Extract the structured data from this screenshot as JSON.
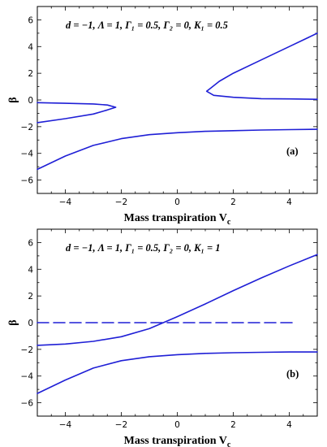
{
  "chart_data": [
    {
      "type": "line",
      "panel_label": "(a)",
      "annotation": "d = −1, Λ = 1, Γ₁ = 0.5, Γ₂ = 0, K₁ = 0.5",
      "xlabel": "Mass transpiration V",
      "xlabel_sub": "c",
      "ylabel": "β",
      "xlim": [
        -5,
        5
      ],
      "ylim": [
        -7,
        7
      ],
      "xticks": [
        -4,
        -2,
        0,
        2,
        4
      ],
      "yticks": [
        -6,
        -4,
        -2,
        0,
        2,
        4,
        6
      ],
      "color": "#1f1fd6",
      "series": [
        {
          "style": "solid",
          "points": [
            [
              -5,
              -0.2
            ],
            [
              -4,
              -0.25
            ],
            [
              -3,
              -0.3
            ],
            [
              -2.5,
              -0.38
            ],
            [
              -2.2,
              -0.55
            ],
            [
              -2.5,
              -0.75
            ],
            [
              -3,
              -1.05
            ],
            [
              -4,
              -1.4
            ],
            [
              -5,
              -1.7
            ]
          ]
        },
        {
          "style": "solid",
          "points": [
            [
              5,
              5.0
            ],
            [
              4,
              4.0
            ],
            [
              3,
              3.0
            ],
            [
              2,
              2.0
            ],
            [
              1.5,
              1.4
            ],
            [
              1.2,
              0.9
            ],
            [
              1.05,
              0.65
            ],
            [
              1.3,
              0.35
            ],
            [
              2,
              0.2
            ],
            [
              3,
              0.1
            ],
            [
              4,
              0.08
            ],
            [
              5,
              0.05
            ]
          ]
        },
        {
          "style": "solid",
          "points": [
            [
              -5,
              -5.2
            ],
            [
              -4,
              -4.2
            ],
            [
              -3,
              -3.4
            ],
            [
              -2,
              -2.9
            ],
            [
              -1,
              -2.6
            ],
            [
              0,
              -2.45
            ],
            [
              1,
              -2.35
            ],
            [
              2,
              -2.3
            ],
            [
              3,
              -2.25
            ],
            [
              4,
              -2.22
            ],
            [
              5,
              -2.2
            ]
          ]
        }
      ]
    },
    {
      "type": "line",
      "panel_label": "(b)",
      "annotation": "d = −1, Λ = 1, Γ₁ = 0.5, Γ₂ = 0, K₁ = 1",
      "xlabel": "Mass transpiration V",
      "xlabel_sub": "c",
      "ylabel": "β",
      "xlim": [
        -5,
        5
      ],
      "ylim": [
        -7,
        7
      ],
      "xticks": [
        -4,
        -2,
        0,
        2,
        4
      ],
      "yticks": [
        -6,
        -4,
        -2,
        0,
        2,
        4,
        6
      ],
      "color": "#1f1fd6",
      "series": [
        {
          "style": "dashed",
          "points": [
            [
              -5,
              0
            ],
            [
              4.2,
              0
            ]
          ]
        },
        {
          "style": "solid",
          "points": [
            [
              -5,
              -1.7
            ],
            [
              -4,
              -1.6
            ],
            [
              -3,
              -1.4
            ],
            [
              -2,
              -1.05
            ],
            [
              -1,
              -0.45
            ],
            [
              -0.5,
              0
            ],
            [
              0,
              0.45
            ],
            [
              1,
              1.4
            ],
            [
              2,
              2.4
            ],
            [
              3,
              3.35
            ],
            [
              4,
              4.25
            ],
            [
              5,
              5.1
            ]
          ]
        },
        {
          "style": "solid",
          "points": [
            [
              -5,
              -5.3
            ],
            [
              -4,
              -4.3
            ],
            [
              -3,
              -3.4
            ],
            [
              -2,
              -2.85
            ],
            [
              -1,
              -2.55
            ],
            [
              0,
              -2.4
            ],
            [
              1,
              -2.3
            ],
            [
              2,
              -2.25
            ],
            [
              3,
              -2.22
            ],
            [
              4,
              -2.2
            ],
            [
              5,
              -2.2
            ]
          ]
        }
      ]
    }
  ]
}
